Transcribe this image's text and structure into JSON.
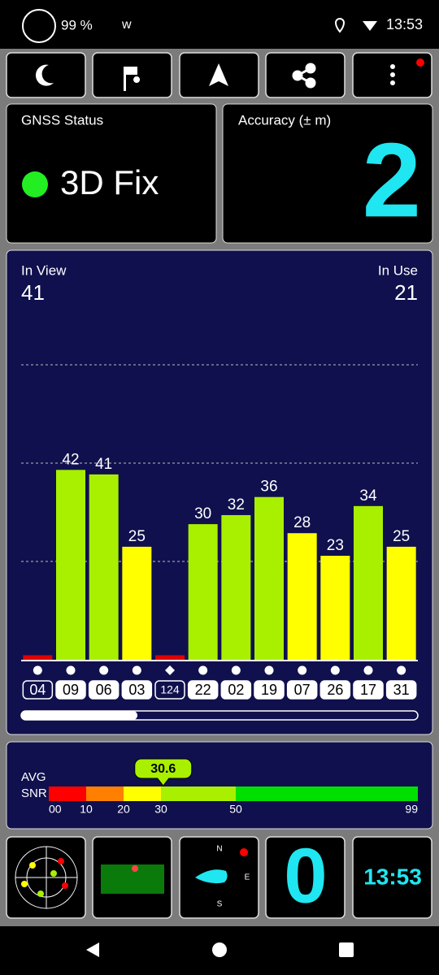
{
  "status_bar": {
    "battery": "99 %",
    "app_letter": "w",
    "time": "13:53"
  },
  "gnss_status": {
    "title": "GNSS Status",
    "fix": "3D Fix"
  },
  "accuracy": {
    "title": "Accuracy (± m)",
    "value": 2
  },
  "satellites": {
    "in_view_label": "In View",
    "in_view": 41,
    "in_use_label": "In Use",
    "in_use": 21
  },
  "chart_data": {
    "type": "bar",
    "categories": [
      "04",
      "09",
      "06",
      "03",
      "124",
      "22",
      "02",
      "19",
      "07",
      "26",
      "17",
      "31"
    ],
    "values": [
      1,
      42,
      41,
      25,
      1,
      30,
      32,
      36,
      28,
      23,
      34,
      25
    ],
    "value_labels": [
      null,
      "42",
      "41",
      "25",
      null,
      "30",
      "32",
      "36",
      "28",
      "23",
      "34",
      "25"
    ],
    "colors": [
      "#e00000",
      "#a8f000",
      "#a8f000",
      "#ffff00",
      "#e00000",
      "#a8f000",
      "#a8f000",
      "#a8f000",
      "#ffff00",
      "#ffff00",
      "#a8f000",
      "#ffff00"
    ],
    "in_use": [
      false,
      true,
      true,
      true,
      false,
      true,
      true,
      true,
      true,
      true,
      true,
      true
    ],
    "symbols": [
      "circle",
      "circle",
      "circle",
      "circle",
      "diamond",
      "circle",
      "circle",
      "circle",
      "circle",
      "circle",
      "circle",
      "circle"
    ],
    "ylim": [
      0,
      87
    ],
    "yticks": [
      21.75,
      43.5,
      65.25
    ],
    "grid": true
  },
  "snr": {
    "label_lines": [
      "AVG",
      "SNR"
    ],
    "value": 30.6,
    "ticks": [
      {
        "value": 0,
        "label": "00"
      },
      10,
      20,
      30,
      50,
      99
    ],
    "segment_colors": [
      "#ff0000",
      "#ff8000",
      "#ffff00",
      "#a8f000",
      "#00e000"
    ]
  },
  "tiles": {
    "compass": [
      "N",
      "E",
      "S"
    ],
    "speed": 0,
    "clock": "13:53"
  }
}
